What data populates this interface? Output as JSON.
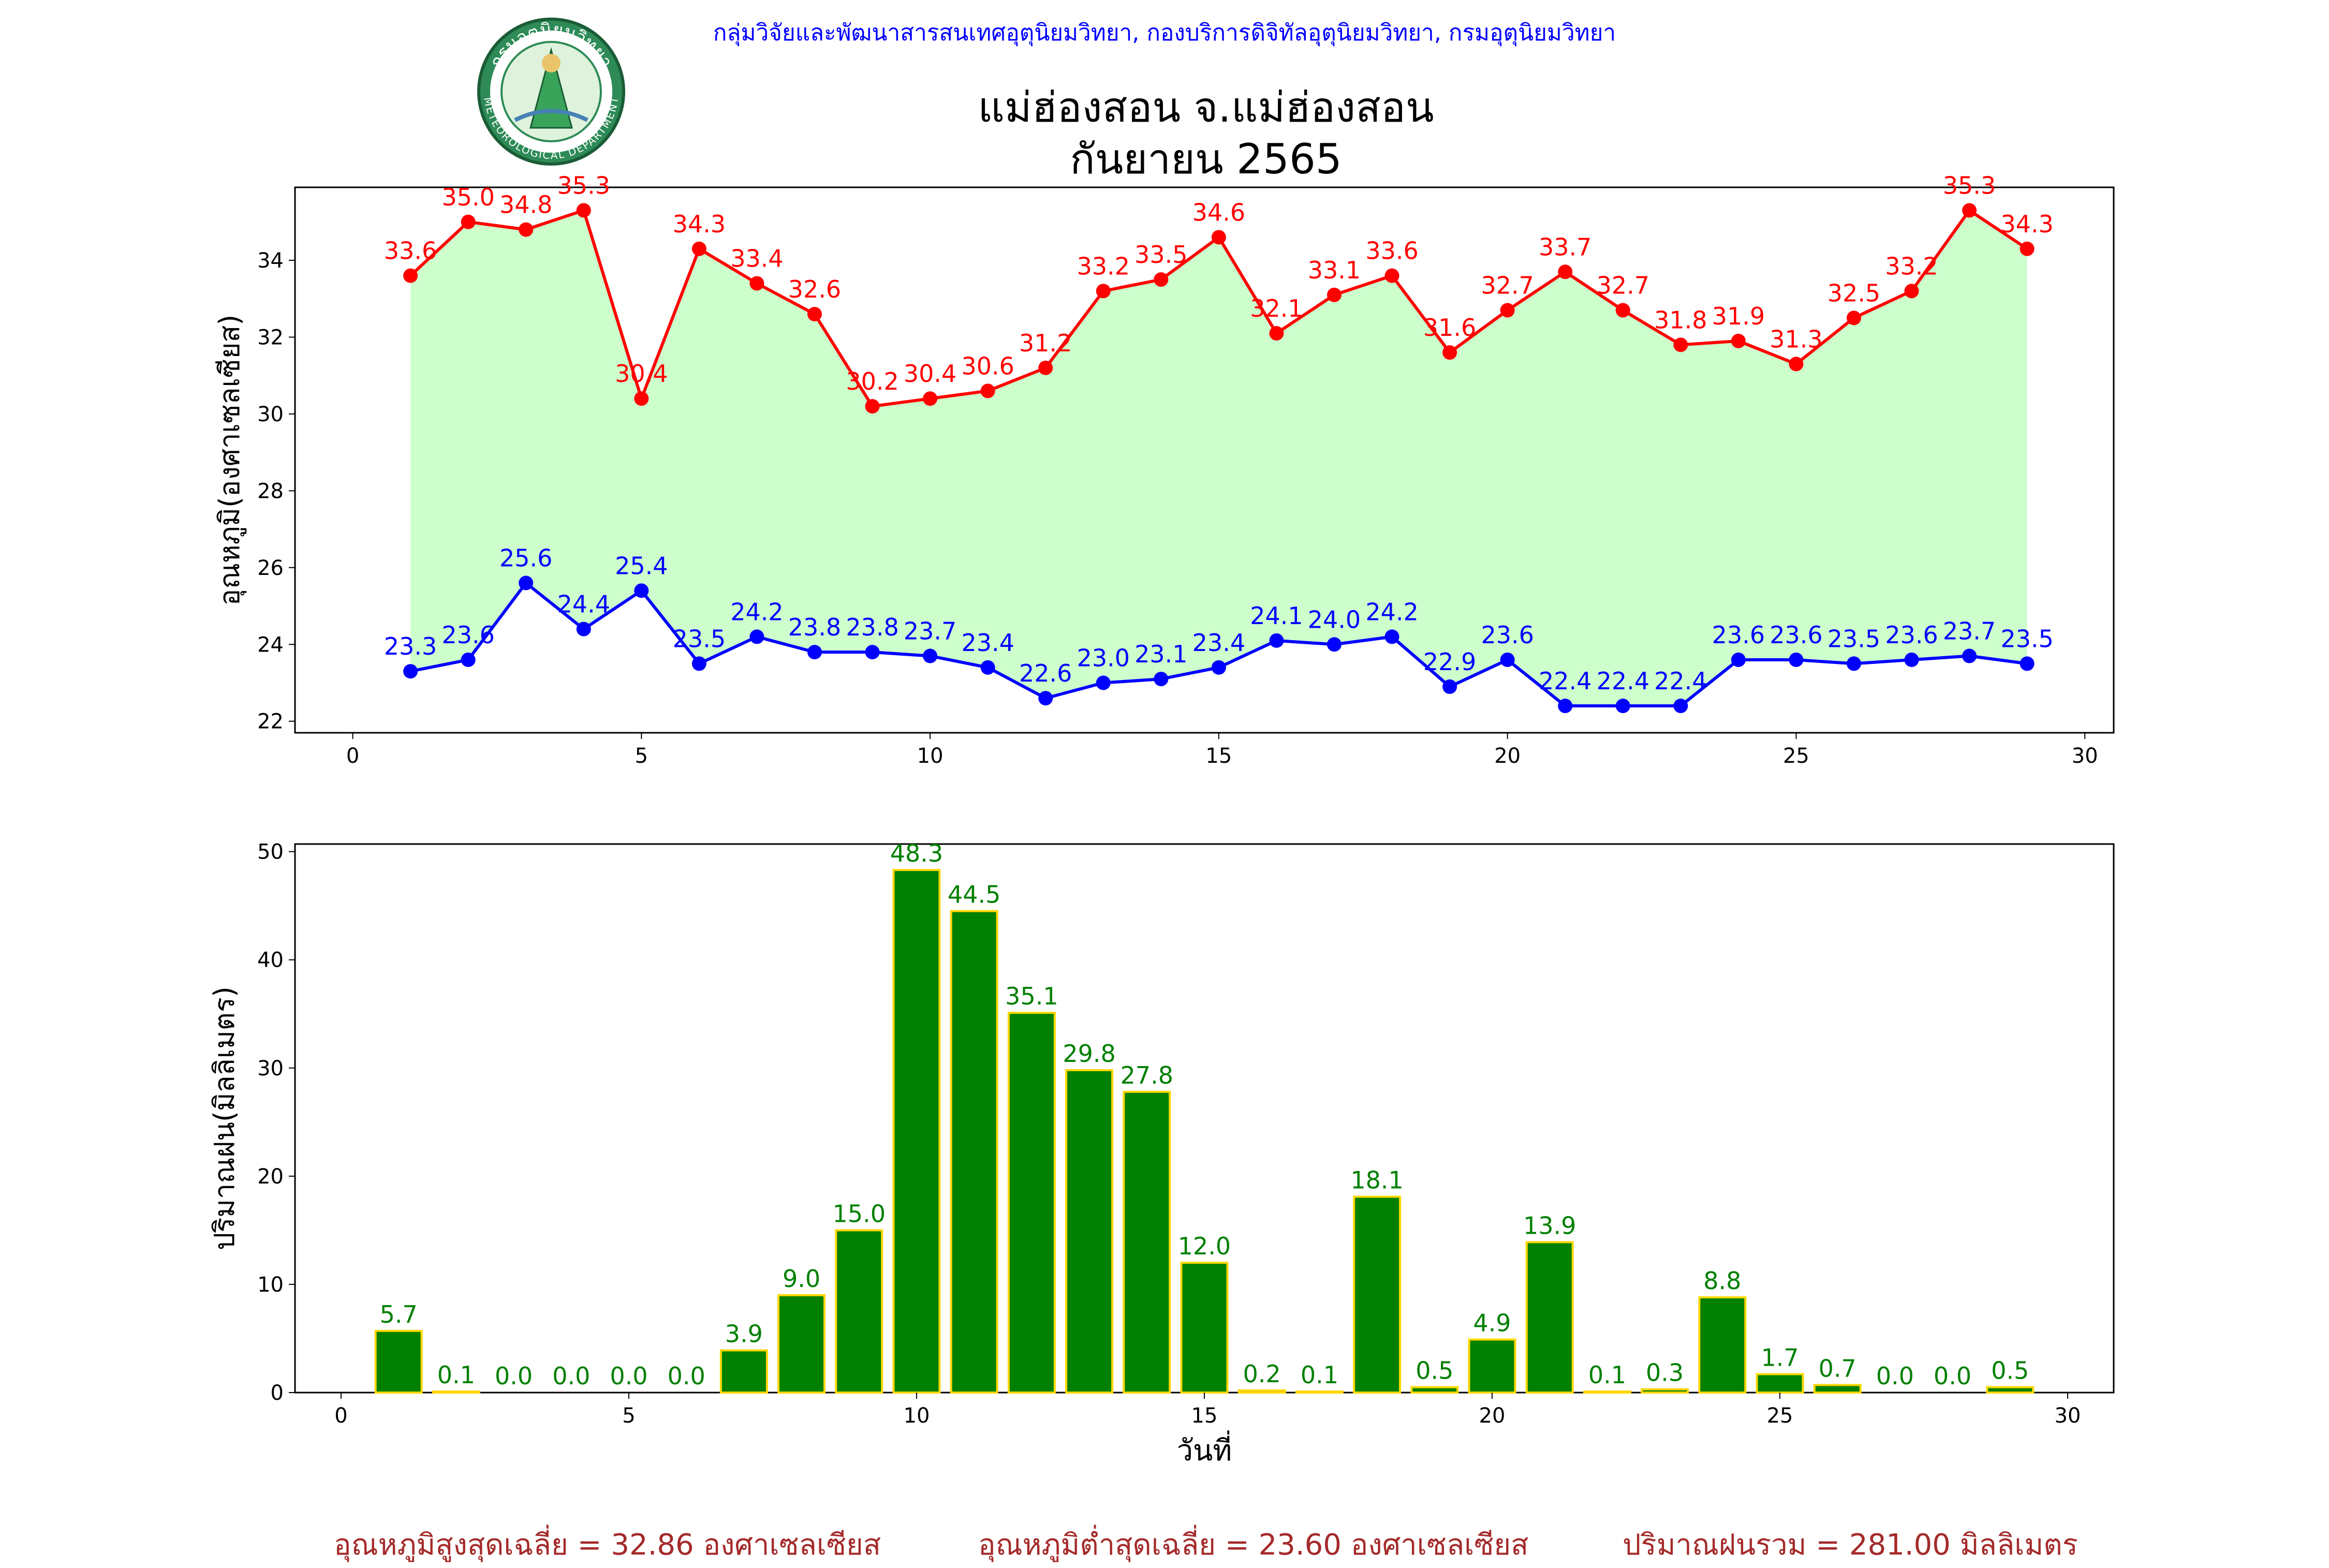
{
  "header": {
    "organization": "กลุ่มวิจัยและพัฒนาสารสนเทศอุตุนิยมวิทยา, กองบริการดิจิทัลอุตุนิยมวิทยา, กรมอุตุนิยมวิทยา",
    "logo": {
      "icon": "meteorological-department-seal",
      "ring_text_top": "กรมอุตุนิยมวิทยา",
      "ring_text_bottom": "METEOROLOGICAL DEPARTMENT"
    }
  },
  "title": {
    "line1": "แม่ฮ่องสอน จ.แม่ฮ่องสอน",
    "line2": "กันยายน 2565"
  },
  "footer": {
    "avg_max": "อุณหภูมิสูงสุดเฉลี่ย = 32.86 องศาเซลเซียส",
    "avg_min": "อุณหภูมิต่ำสุดเฉลี่ย = 23.60 องศาเซลเซียส",
    "total_rain": "ปริมาณฝนรวม = 281.00 มิลลิเมตร"
  },
  "colors": {
    "max_temp": "#ff0000",
    "min_temp": "#0000ff",
    "temp_fill": "#ccffcc",
    "rain_bar": "#008000",
    "rain_edge": "#ffd700",
    "rain_label": "#008000",
    "footer_text": "#a52a2a"
  },
  "chart_data": [
    {
      "type": "line",
      "ylabel": "อุณหภูมิ(องศาเซลเซียส)",
      "xlim": [
        -1,
        30.5
      ],
      "ylim": [
        21.7,
        35.9
      ],
      "xticks": [
        0,
        5,
        10,
        15,
        20,
        25,
        30
      ],
      "yticks": [
        22,
        24,
        26,
        28,
        30,
        32,
        34
      ],
      "fill_between_series": true,
      "x": [
        1,
        2,
        3,
        4,
        5,
        6,
        7,
        8,
        9,
        10,
        11,
        12,
        13,
        14,
        15,
        16,
        17,
        18,
        19,
        20,
        21,
        22,
        23,
        24,
        25,
        26,
        27,
        28,
        29
      ],
      "series": [
        {
          "values": [
            33.6,
            35.0,
            34.8,
            35.3,
            30.4,
            34.3,
            33.4,
            32.6,
            30.2,
            30.4,
            30.6,
            31.2,
            33.2,
            33.5,
            34.6,
            32.1,
            33.1,
            33.6,
            31.6,
            32.7,
            33.7,
            32.7,
            31.8,
            31.9,
            31.3,
            32.5,
            33.2,
            35.3,
            34.3
          ]
        },
        {
          "values": [
            23.3,
            23.6,
            25.6,
            24.4,
            25.4,
            23.5,
            24.2,
            23.8,
            23.8,
            23.7,
            23.4,
            22.6,
            23.0,
            23.1,
            23.4,
            24.1,
            24.0,
            24.2,
            22.9,
            23.6,
            22.4,
            22.4,
            22.4,
            23.6,
            23.6,
            23.5,
            23.6,
            23.7,
            23.5
          ]
        }
      ]
    },
    {
      "type": "bar",
      "xlabel": "วันที่",
      "ylabel": "ปริมาณฝน(มิลลิเมตร)",
      "xlim": [
        -0.8,
        30.8
      ],
      "ylim": [
        0,
        50.7
      ],
      "xticks": [
        0,
        5,
        10,
        15,
        20,
        25,
        30
      ],
      "yticks": [
        0,
        10,
        20,
        30,
        40,
        50
      ],
      "x": [
        1,
        2,
        3,
        4,
        5,
        6,
        7,
        8,
        9,
        10,
        11,
        12,
        13,
        14,
        15,
        16,
        17,
        18,
        19,
        20,
        21,
        22,
        23,
        24,
        25,
        26,
        27,
        28,
        29
      ],
      "values": [
        5.7,
        0.1,
        0.0,
        0.0,
        0.0,
        0.0,
        3.9,
        9.0,
        15.0,
        48.3,
        44.5,
        35.1,
        29.8,
        27.8,
        12.0,
        0.2,
        0.1,
        18.1,
        0.5,
        4.9,
        13.9,
        0.1,
        0.3,
        8.8,
        1.7,
        0.7,
        0.0,
        0.0,
        0.5
      ]
    }
  ]
}
